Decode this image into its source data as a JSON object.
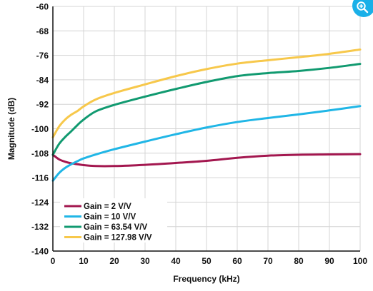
{
  "chart_data": {
    "type": "line",
    "title": "",
    "xlabel": "Frequency (kHz)",
    "ylabel": "Magnitude (dB)",
    "xlim": [
      0,
      100
    ],
    "ylim": [
      -140,
      -60
    ],
    "xticks": [
      "0",
      "10",
      "20",
      "30",
      "40",
      "50",
      "60",
      "70",
      "80",
      "90",
      "100"
    ],
    "yticks": [
      "-60",
      "-68",
      "-76",
      "-84",
      "-92",
      "-100",
      "-108",
      "-116",
      "-124",
      "-132",
      "-140"
    ],
    "grid": true,
    "legend_position": "bottom-left",
    "series": [
      {
        "name": "Gain = 2 V/V",
        "color": "#a3174f",
        "x": [
          0,
          2,
          4,
          6,
          8,
          10,
          14,
          20,
          30,
          40,
          50,
          60,
          70,
          80,
          90,
          100
        ],
        "y": [
          -108.5,
          -110,
          -110.8,
          -111.3,
          -111.6,
          -111.9,
          -112.2,
          -112.2,
          -111.8,
          -111.2,
          -110.5,
          -109.5,
          -108.8,
          -108.5,
          -108.4,
          -108.3
        ]
      },
      {
        "name": "Gain = 10 V/V",
        "color": "#20b6e6",
        "x": [
          0,
          2,
          4,
          6,
          8,
          10,
          14,
          20,
          30,
          40,
          50,
          60,
          70,
          80,
          90,
          100
        ],
        "y": [
          -117,
          -114.5,
          -112.8,
          -111.6,
          -110.6,
          -109.7,
          -108.4,
          -106.7,
          -104.2,
          -101.8,
          -99.6,
          -97.8,
          -96.5,
          -95.3,
          -94,
          -92.6
        ]
      },
      {
        "name": "Gain = 63.54 V/V",
        "color": "#119a70",
        "x": [
          0,
          2,
          4,
          6,
          8,
          10,
          14,
          20,
          30,
          40,
          50,
          60,
          70,
          80,
          90,
          100
        ],
        "y": [
          -108.5,
          -105,
          -102.7,
          -100.8,
          -98.8,
          -97,
          -94.3,
          -92.2,
          -89.5,
          -87,
          -84.7,
          -82.8,
          -81.8,
          -81.1,
          -80.1,
          -78.8
        ]
      },
      {
        "name": "Gain = 127.98 V/V",
        "color": "#f7c84b",
        "x": [
          0,
          2,
          4,
          6,
          8,
          10,
          14,
          20,
          30,
          40,
          50,
          60,
          70,
          80,
          90,
          100
        ],
        "y": [
          -102.8,
          -99.3,
          -97,
          -95.4,
          -94.2,
          -92.7,
          -90.4,
          -88.3,
          -85.5,
          -82.8,
          -80.5,
          -78.7,
          -77.6,
          -76.6,
          -75.5,
          -74.1
        ]
      }
    ]
  },
  "ui": {
    "zoom_icon": "zoom-in-icon"
  }
}
